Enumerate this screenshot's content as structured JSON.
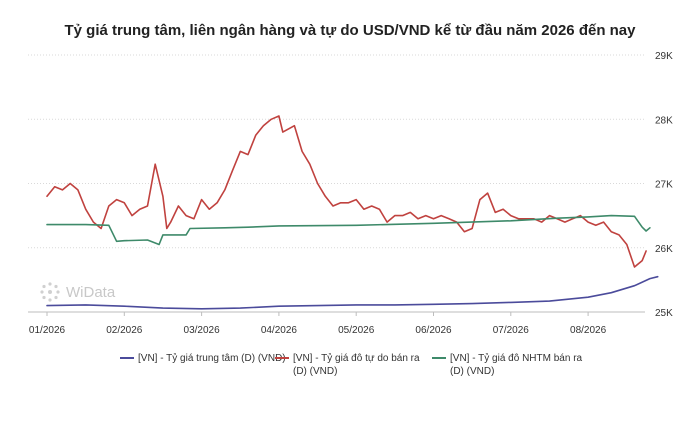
{
  "title": "Tỷ giá trung tâm, liên ngân hàng và tự do USD/VND kể từ đầu năm 2026 đến nay",
  "watermark": "WiData",
  "colors": {
    "central": "#4b4b9b",
    "free": "#c0423f",
    "bank": "#3e8a6a",
    "grid": "#d9d9d9",
    "axis_text": "#333333"
  },
  "chart_data": {
    "type": "line",
    "title": "Tỷ giá trung tâm, liên ngân hàng và tự do USD/VND kể từ đầu năm 2026 đến nay",
    "x_tick_labels": [
      "01/2026",
      "02/2026",
      "03/2026",
      "04/2026",
      "05/2026",
      "06/2026",
      "07/2026",
      "08/2026"
    ],
    "y_tick_labels": [
      "25K",
      "26K",
      "27K",
      "28K",
      "29K"
    ],
    "ylim": [
      25000,
      29000
    ],
    "grid": "horizontal dotted",
    "legend_position": "bottom",
    "x_unit": "month",
    "series": [
      {
        "name": "[VN] - Tỷ giá trung tâm (D) (VND)",
        "color": "#4b4b9b",
        "points": [
          [
            0.0,
            25100
          ],
          [
            0.5,
            25110
          ],
          [
            1.0,
            25090
          ],
          [
            1.5,
            25060
          ],
          [
            2.0,
            25050
          ],
          [
            2.5,
            25060
          ],
          [
            3.0,
            25090
          ],
          [
            3.5,
            25100
          ],
          [
            4.0,
            25110
          ],
          [
            4.5,
            25110
          ],
          [
            5.0,
            25120
          ],
          [
            5.5,
            25130
          ],
          [
            6.0,
            25150
          ],
          [
            6.5,
            25170
          ],
          [
            7.0,
            25230
          ],
          [
            7.3,
            25300
          ],
          [
            7.6,
            25410
          ],
          [
            7.8,
            25520
          ],
          [
            7.9,
            25550
          ]
        ]
      },
      {
        "name": "[VN] - Tỷ giá đô tự do bán ra (D) (VND)",
        "color": "#c0423f",
        "points": [
          [
            0.0,
            26800
          ],
          [
            0.1,
            26950
          ],
          [
            0.2,
            26900
          ],
          [
            0.3,
            27000
          ],
          [
            0.4,
            26900
          ],
          [
            0.5,
            26600
          ],
          [
            0.6,
            26400
          ],
          [
            0.7,
            26300
          ],
          [
            0.8,
            26650
          ],
          [
            0.9,
            26750
          ],
          [
            1.0,
            26700
          ],
          [
            1.1,
            26500
          ],
          [
            1.2,
            26600
          ],
          [
            1.3,
            26650
          ],
          [
            1.4,
            27300
          ],
          [
            1.5,
            26800
          ],
          [
            1.55,
            26300
          ],
          [
            1.6,
            26400
          ],
          [
            1.7,
            26650
          ],
          [
            1.8,
            26500
          ],
          [
            1.9,
            26450
          ],
          [
            2.0,
            26750
          ],
          [
            2.1,
            26600
          ],
          [
            2.2,
            26700
          ],
          [
            2.3,
            26900
          ],
          [
            2.4,
            27200
          ],
          [
            2.5,
            27500
          ],
          [
            2.6,
            27450
          ],
          [
            2.7,
            27750
          ],
          [
            2.8,
            27900
          ],
          [
            2.9,
            28000
          ],
          [
            3.0,
            28050
          ],
          [
            3.05,
            27800
          ],
          [
            3.2,
            27900
          ],
          [
            3.3,
            27500
          ],
          [
            3.4,
            27300
          ],
          [
            3.5,
            27000
          ],
          [
            3.6,
            26800
          ],
          [
            3.7,
            26650
          ],
          [
            3.8,
            26700
          ],
          [
            3.9,
            26700
          ],
          [
            4.0,
            26750
          ],
          [
            4.1,
            26600
          ],
          [
            4.2,
            26650
          ],
          [
            4.3,
            26600
          ],
          [
            4.4,
            26400
          ],
          [
            4.5,
            26500
          ],
          [
            4.6,
            26500
          ],
          [
            4.7,
            26550
          ],
          [
            4.8,
            26450
          ],
          [
            4.9,
            26500
          ],
          [
            5.0,
            26450
          ],
          [
            5.1,
            26500
          ],
          [
            5.2,
            26450
          ],
          [
            5.3,
            26400
          ],
          [
            5.4,
            26250
          ],
          [
            5.5,
            26300
          ],
          [
            5.6,
            26750
          ],
          [
            5.7,
            26850
          ],
          [
            5.8,
            26550
          ],
          [
            5.9,
            26600
          ],
          [
            6.0,
            26500
          ],
          [
            6.1,
            26450
          ],
          [
            6.2,
            26450
          ],
          [
            6.3,
            26450
          ],
          [
            6.4,
            26400
          ],
          [
            6.5,
            26500
          ],
          [
            6.6,
            26450
          ],
          [
            6.7,
            26400
          ],
          [
            6.8,
            26450
          ],
          [
            6.9,
            26500
          ],
          [
            7.0,
            26400
          ],
          [
            7.1,
            26350
          ],
          [
            7.2,
            26400
          ],
          [
            7.3,
            26250
          ],
          [
            7.4,
            26200
          ],
          [
            7.5,
            26050
          ],
          [
            7.6,
            25700
          ],
          [
            7.7,
            25800
          ],
          [
            7.75,
            25950
          ]
        ]
      },
      {
        "name": "[VN] - Tỷ giá đô NHTM bán ra (D) (VND)",
        "color": "#3e8a6a",
        "points": [
          [
            0.0,
            26360
          ],
          [
            0.5,
            26360
          ],
          [
            0.8,
            26350
          ],
          [
            0.9,
            26100
          ],
          [
            1.0,
            26110
          ],
          [
            1.3,
            26120
          ],
          [
            1.45,
            26050
          ],
          [
            1.5,
            26200
          ],
          [
            1.8,
            26200
          ],
          [
            1.85,
            26300
          ],
          [
            2.3,
            26310
          ],
          [
            2.6,
            26320
          ],
          [
            3.0,
            26340
          ],
          [
            4.0,
            26350
          ],
          [
            5.0,
            26380
          ],
          [
            6.0,
            26420
          ],
          [
            6.6,
            26460
          ],
          [
            7.0,
            26480
          ],
          [
            7.3,
            26500
          ],
          [
            7.6,
            26490
          ],
          [
            7.7,
            26320
          ],
          [
            7.75,
            26260
          ],
          [
            7.8,
            26310
          ]
        ]
      }
    ]
  },
  "legend": [
    {
      "label": "[VN] - Tỷ giá trung tâm (D) (VND)",
      "color": "#4b4b9b"
    },
    {
      "label": "[VN] - Tỷ giá đô tự do bán ra (D) (VND)",
      "color": "#c0423f"
    },
    {
      "label": "[VN] - Tỷ giá đô NHTM bán ra (D) (VND)",
      "color": "#3e8a6a"
    }
  ]
}
